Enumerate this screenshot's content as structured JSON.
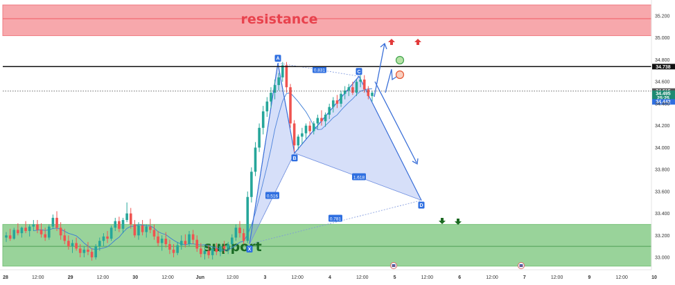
{
  "chart_data": {
    "type": "candlestick",
    "y_axis": {
      "ticks": [
        "35.200",
        "35.000",
        "34.800",
        "34.600",
        "34.400",
        "34.200",
        "34.000",
        "33.800",
        "33.600",
        "33.400",
        "33.200",
        "33.000"
      ],
      "ylim": [
        32.95,
        35.35
      ]
    },
    "x_axis": {
      "ticks": [
        "28",
        "12:00",
        "29",
        "12:00",
        "30",
        "12:00",
        "Jun",
        "12:00",
        "3",
        "12:00",
        "4",
        "12:00",
        "5",
        "12:00",
        "6",
        "12:00",
        "7",
        "12:00",
        "9",
        "12:00",
        "10",
        "12:00"
      ]
    },
    "zones": {
      "resistance": {
        "label": "resistance",
        "from": 35.02,
        "to": 35.3,
        "mid": 35.175
      },
      "support": {
        "label": "support",
        "from": 32.92,
        "to": 33.3,
        "mid": 33.1
      }
    },
    "levels": {
      "black_line": {
        "value": 34.738,
        "label": "34.738"
      },
      "dotted_line": {
        "value": 34.515,
        "label": "34.515"
      }
    },
    "price_labels": {
      "current": "34.495",
      "countdown": "25:25",
      "ma": "34.442"
    },
    "harmonic": {
      "points": [
        {
          "name": "X",
          "price": 33.12
        },
        {
          "name": "A",
          "price": 34.77
        },
        {
          "name": "B",
          "price": 33.95
        },
        {
          "name": "C",
          "price": 34.65
        },
        {
          "name": "D",
          "price": 33.52
        }
      ],
      "ratios": [
        "0.516",
        "0.831",
        "1.618",
        "0.781"
      ]
    },
    "candles": [
      [
        33.18,
        33.23,
        33.14,
        33.2
      ],
      [
        33.2,
        33.26,
        33.15,
        33.17
      ],
      [
        33.17,
        33.27,
        33.16,
        33.25
      ],
      [
        33.25,
        33.31,
        33.2,
        33.22
      ],
      [
        33.22,
        33.28,
        33.18,
        33.27
      ],
      [
        33.27,
        33.33,
        33.22,
        33.24
      ],
      [
        33.24,
        33.3,
        33.19,
        33.28
      ],
      [
        33.28,
        33.34,
        33.24,
        33.3
      ],
      [
        33.3,
        33.34,
        33.22,
        33.25
      ],
      [
        33.25,
        33.31,
        33.18,
        33.21
      ],
      [
        33.21,
        33.27,
        33.15,
        33.18
      ],
      [
        33.18,
        33.3,
        33.16,
        33.28
      ],
      [
        33.28,
        33.39,
        33.26,
        33.36
      ],
      [
        33.36,
        33.42,
        33.24,
        33.27
      ],
      [
        33.27,
        33.32,
        33.16,
        33.2
      ],
      [
        33.2,
        33.26,
        33.12,
        33.15
      ],
      [
        33.15,
        33.2,
        33.07,
        33.1
      ],
      [
        33.1,
        33.16,
        33.04,
        33.13
      ],
      [
        33.13,
        33.18,
        33.06,
        33.08
      ],
      [
        33.08,
        33.12,
        33.0,
        33.04
      ],
      [
        33.04,
        33.1,
        33.0,
        33.07
      ],
      [
        33.07,
        33.14,
        33.02,
        33.05
      ],
      [
        33.05,
        33.08,
        32.97,
        33.0
      ],
      [
        33.0,
        33.12,
        32.98,
        33.1
      ],
      [
        33.1,
        33.18,
        33.06,
        33.15
      ],
      [
        33.15,
        33.22,
        33.1,
        33.19
      ],
      [
        33.19,
        33.24,
        33.13,
        33.17
      ],
      [
        33.17,
        33.29,
        33.15,
        33.27
      ],
      [
        33.27,
        33.36,
        33.24,
        33.33
      ],
      [
        33.33,
        33.37,
        33.23,
        33.26
      ],
      [
        33.26,
        33.36,
        33.22,
        33.34
      ],
      [
        33.34,
        33.5,
        33.32,
        33.4
      ],
      [
        33.4,
        33.45,
        33.26,
        33.3
      ],
      [
        33.3,
        33.34,
        33.18,
        33.2
      ],
      [
        33.2,
        33.32,
        33.16,
        33.29
      ],
      [
        33.29,
        33.34,
        33.2,
        33.23
      ],
      [
        33.23,
        33.3,
        33.18,
        33.28
      ],
      [
        33.28,
        33.35,
        33.22,
        33.25
      ],
      [
        33.25,
        33.3,
        33.16,
        33.19
      ],
      [
        33.19,
        33.24,
        33.1,
        33.13
      ],
      [
        33.13,
        33.2,
        33.06,
        33.17
      ],
      [
        33.17,
        33.23,
        33.09,
        33.12
      ],
      [
        33.12,
        33.16,
        33.03,
        33.07
      ],
      [
        33.07,
        33.12,
        33.0,
        33.04
      ],
      [
        33.04,
        33.14,
        33.02,
        33.11
      ],
      [
        33.11,
        33.2,
        33.07,
        33.15
      ],
      [
        33.15,
        33.21,
        33.09,
        33.12
      ],
      [
        33.12,
        33.24,
        33.1,
        33.21
      ],
      [
        33.21,
        33.25,
        33.12,
        33.16
      ],
      [
        33.16,
        33.2,
        33.05,
        33.08
      ],
      [
        33.08,
        33.13,
        33.0,
        33.03
      ],
      [
        33.03,
        33.1,
        32.98,
        33.06
      ],
      [
        33.06,
        33.11,
        32.99,
        33.02
      ],
      [
        33.02,
        33.1,
        32.98,
        33.08
      ],
      [
        33.08,
        33.13,
        33.02,
        33.05
      ],
      [
        33.05,
        33.12,
        33.01,
        33.1
      ],
      [
        33.1,
        33.15,
        33.04,
        33.08
      ],
      [
        33.08,
        33.14,
        33.03,
        33.12
      ],
      [
        33.12,
        33.21,
        33.09,
        33.18
      ],
      [
        33.18,
        33.3,
        33.15,
        33.27
      ],
      [
        33.27,
        33.33,
        33.18,
        33.22
      ],
      [
        33.22,
        33.26,
        33.12,
        33.15
      ],
      [
        33.15,
        33.6,
        33.13,
        33.55
      ],
      [
        33.55,
        33.82,
        33.5,
        33.78
      ],
      [
        33.78,
        34.05,
        33.74,
        34.0
      ],
      [
        34.0,
        34.22,
        33.96,
        34.18
      ],
      [
        34.18,
        34.38,
        34.12,
        34.33
      ],
      [
        34.33,
        34.46,
        34.28,
        34.42
      ],
      [
        34.42,
        34.55,
        34.36,
        34.5
      ],
      [
        34.5,
        34.62,
        34.44,
        34.57
      ],
      [
        34.57,
        34.68,
        34.52,
        34.64
      ],
      [
        34.64,
        34.78,
        34.6,
        34.75
      ],
      [
        34.75,
        34.78,
        34.5,
        34.55
      ],
      [
        34.55,
        34.58,
        34.18,
        34.22
      ],
      [
        34.22,
        34.25,
        33.96,
        34.02
      ],
      [
        34.02,
        34.12,
        33.98,
        34.1
      ],
      [
        34.1,
        34.18,
        34.03,
        34.13
      ],
      [
        34.13,
        34.22,
        34.08,
        34.2
      ],
      [
        34.2,
        34.24,
        34.12,
        34.15
      ],
      [
        34.15,
        34.24,
        34.12,
        34.22
      ],
      [
        34.22,
        34.3,
        34.17,
        34.27
      ],
      [
        34.27,
        34.34,
        34.2,
        34.24
      ],
      [
        34.24,
        34.32,
        34.19,
        34.3
      ],
      [
        34.3,
        34.4,
        34.26,
        34.37
      ],
      [
        34.37,
        34.46,
        34.32,
        34.43
      ],
      [
        34.43,
        34.48,
        34.36,
        34.4
      ],
      [
        34.4,
        34.52,
        34.37,
        34.49
      ],
      [
        34.49,
        34.56,
        34.44,
        34.52
      ],
      [
        34.52,
        34.58,
        34.47,
        34.55
      ],
      [
        34.55,
        34.6,
        34.48,
        34.5
      ],
      [
        34.5,
        34.62,
        34.47,
        34.6
      ],
      [
        34.6,
        34.66,
        34.55,
        34.62
      ],
      [
        34.62,
        34.66,
        34.5,
        34.53
      ],
      [
        34.53,
        34.56,
        34.44,
        34.47
      ],
      [
        34.47,
        34.52,
        34.42,
        34.5
      ]
    ]
  }
}
